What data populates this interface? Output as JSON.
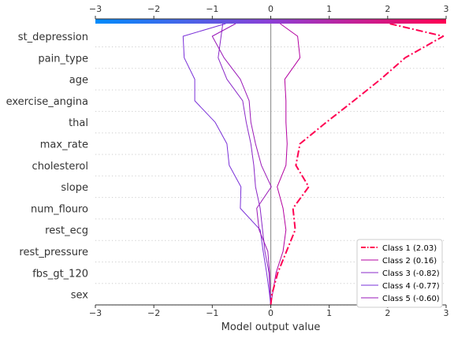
{
  "chart_data": {
    "type": "line",
    "subtype": "shap-decision-plot",
    "xlabel": "Model output value",
    "xlim": [
      -3,
      3
    ],
    "xticks": [
      "−3",
      "−2",
      "−1",
      "0",
      "1",
      "2",
      "3"
    ],
    "xtick_values": [
      -3,
      -2,
      -1,
      0,
      1,
      2,
      3
    ],
    "base_value": 0,
    "features": [
      "st_depression",
      "pain_type",
      "age",
      "exercise_angina",
      "thal",
      "max_rate",
      "cholesterol",
      "slope",
      "num_flouro",
      "rest_ecg",
      "rest_pressure",
      "fbs_gt_120",
      "sex"
    ],
    "series": [
      {
        "name": "Class 1 (2.03)",
        "color": "#ff0052",
        "style": "dashdot",
        "highlight": true,
        "values": [
          0.0,
          0.02,
          0.12,
          0.27,
          0.42,
          0.38,
          0.65,
          0.43,
          0.5,
          0.95,
          1.42,
          1.88,
          2.3,
          2.95,
          2.03
        ]
      },
      {
        "name": "Class 2 (0.16)",
        "color": "#b300a0",
        "style": "solid",
        "values": [
          0.0,
          0.03,
          0.09,
          0.21,
          0.26,
          0.21,
          0.11,
          0.26,
          0.28,
          0.26,
          0.26,
          0.24,
          0.5,
          0.46,
          0.16
        ]
      },
      {
        "name": "Class 3 (-0.82)",
        "color": "#8a28c8",
        "style": "solid",
        "values": [
          0.0,
          -0.01,
          -0.03,
          -0.1,
          -0.14,
          -0.18,
          -0.26,
          -0.29,
          -0.34,
          -0.42,
          -0.48,
          -0.75,
          -0.9,
          -0.85,
          -0.82
        ]
      },
      {
        "name": "Class 4 (-0.77)",
        "color": "#7a30d8",
        "style": "solid",
        "values": [
          0.0,
          -0.02,
          -0.07,
          -0.13,
          -0.18,
          -0.52,
          -0.51,
          -0.71,
          -0.75,
          -0.95,
          -1.3,
          -1.3,
          -1.48,
          -1.5,
          -0.77
        ]
      },
      {
        "name": "Class 5 (-0.60)",
        "color": "#9a18b8",
        "style": "solid",
        "values": [
          0.0,
          -0.01,
          -0.02,
          -0.05,
          -0.2,
          -0.24,
          0.01,
          -0.16,
          -0.26,
          -0.34,
          -0.37,
          -0.52,
          -0.8,
          -1.0,
          -0.6
        ]
      }
    ],
    "colorbar": {
      "from": "#008bfb",
      "to": "#ff0052"
    },
    "legend_position": "lower-right"
  }
}
